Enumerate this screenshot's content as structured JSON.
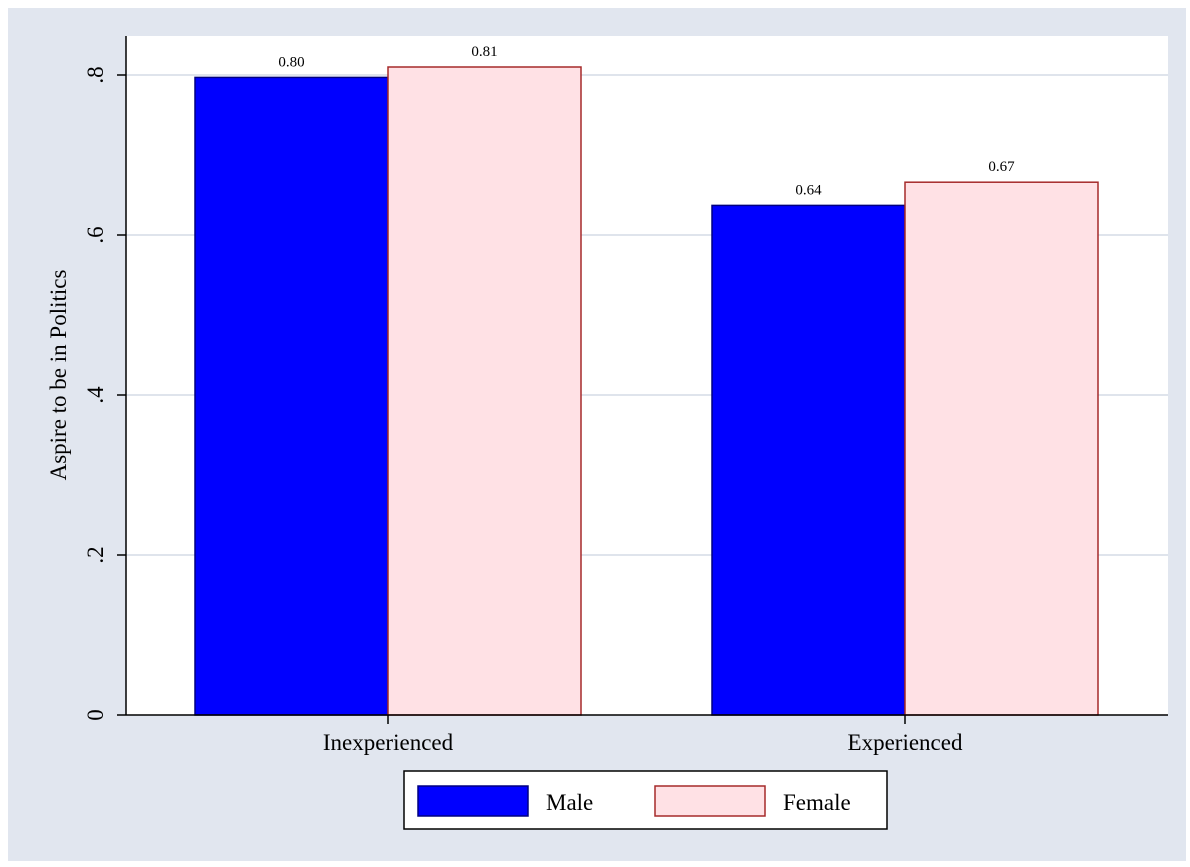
{
  "chart_data": {
    "type": "bar",
    "title": "",
    "xlabel": "",
    "ylabel": "Aspire to be in Politics",
    "categories": [
      "Inexperienced",
      "Experienced"
    ],
    "series": [
      {
        "name": "Male",
        "values": [
          0.797,
          0.637
        ],
        "labels": [
          "0.80",
          "0.64"
        ],
        "color": "#0000ff",
        "stroke": "#000080"
      },
      {
        "name": "Female",
        "values": [
          0.81,
          0.666
        ],
        "labels": [
          "0.81",
          "0.67"
        ],
        "color": "#ffe1e5",
        "stroke": "#a52a2a"
      }
    ],
    "ylim": [
      0,
      0.85
    ],
    "yticks": [
      0,
      0.2,
      0.4,
      0.6,
      0.8
    ],
    "ytick_labels": [
      "0",
      ".2",
      ".4",
      ".6",
      ".8"
    ],
    "grid": true,
    "legend": "bottom",
    "colors": {
      "outer_background": "#e1e6ef",
      "plot_background": "#ffffff",
      "gridline": "#dfe4ec",
      "axis": "#000000"
    }
  }
}
